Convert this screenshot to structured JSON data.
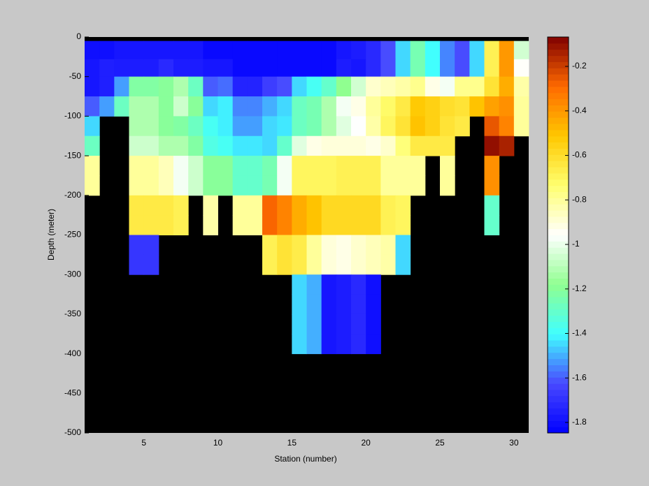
{
  "chart_data": {
    "type": "heatmap",
    "xlabel": "Station (number)",
    "ylabel": "Depth (meter)",
    "x_edges": [
      1,
      2,
      3,
      4,
      5,
      6,
      7,
      8,
      9,
      10,
      11,
      12,
      13,
      14,
      15,
      16,
      17,
      18,
      19,
      20,
      21,
      22,
      23,
      24,
      25,
      26,
      27,
      28,
      29,
      30,
      31
    ],
    "y_edges": [
      0,
      -5,
      -28,
      -50,
      -75,
      -100,
      -125,
      -150,
      -175,
      -200,
      -225,
      -250,
      -275,
      -300,
      -325,
      -350,
      -375,
      -400,
      -425,
      -450,
      -475,
      -500
    ],
    "xlim": [
      1,
      31
    ],
    "ylim": [
      -500,
      0
    ],
    "xticks": [
      5,
      10,
      15,
      20,
      25,
      30
    ],
    "yticks": [
      0,
      -50,
      -100,
      -150,
      -200,
      -250,
      -300,
      -350,
      -400,
      -450,
      -500
    ],
    "clim": [
      -1.847,
      -0.068
    ],
    "cticks": [
      -1.8,
      -1.6,
      -1.4,
      -1.2,
      -1,
      -0.8,
      -0.6,
      -0.4,
      -0.2
    ],
    "colormap": [
      "#0000ff",
      "#4848ff",
      "#40ffff",
      "#90ff90",
      "#ffffff",
      "#ffff70",
      "#ffc800",
      "#ff6a00",
      "#800000"
    ],
    "nan_color": "#000000",
    "z": [
      [
        null,
        null,
        null,
        null,
        null,
        null,
        null,
        null,
        null,
        null,
        null,
        null,
        null,
        null,
        null,
        null,
        null,
        null,
        null,
        null,
        null,
        null,
        null,
        null,
        null,
        null,
        null,
        null,
        null,
        null
      ],
      [
        -1.8,
        -1.8,
        -1.78,
        -1.78,
        -1.78,
        -1.78,
        -1.78,
        -1.78,
        -1.82,
        -1.82,
        -1.82,
        -1.82,
        -1.82,
        -1.82,
        -1.82,
        -1.82,
        -1.82,
        -1.78,
        -1.76,
        -1.72,
        -1.62,
        -1.45,
        -1.25,
        -1.4,
        -1.55,
        -1.62,
        -1.45,
        -0.68,
        -0.4,
        -1.05
      ],
      [
        -1.78,
        -1.75,
        -1.76,
        -1.76,
        -1.76,
        -1.72,
        -1.76,
        -1.76,
        -1.78,
        -1.78,
        -1.82,
        -1.82,
        -1.82,
        -1.82,
        -1.82,
        -1.82,
        -1.82,
        -1.76,
        -1.78,
        -1.72,
        -1.62,
        -1.45,
        -1.25,
        -1.4,
        -1.55,
        -1.62,
        -1.45,
        -0.68,
        -0.4,
        -0.95
      ],
      [
        -1.78,
        -1.75,
        -1.52,
        -1.22,
        -1.22,
        -1.2,
        -1.12,
        -1.28,
        -1.6,
        -1.58,
        -1.74,
        -1.74,
        -1.66,
        -1.62,
        -1.45,
        -1.38,
        -1.3,
        -1.18,
        -1.05,
        -0.88,
        -0.85,
        -0.82,
        -0.78,
        -0.92,
        -0.98,
        -0.78,
        -0.78,
        -0.62,
        -0.45,
        -0.82
      ],
      [
        -1.6,
        -1.52,
        -1.28,
        -1.12,
        -1.12,
        -1.2,
        -1.06,
        -1.2,
        -1.45,
        -1.42,
        -1.55,
        -1.55,
        -1.5,
        -1.45,
        -1.28,
        -1.25,
        -1.12,
        -0.98,
        -0.92,
        -0.8,
        -0.72,
        -0.65,
        -0.52,
        -0.55,
        -0.6,
        -0.62,
        -0.5,
        -0.42,
        -0.38,
        -0.8
      ],
      [
        -1.45,
        null,
        null,
        -1.12,
        -1.12,
        -1.2,
        -1.22,
        -1.28,
        -1.38,
        -1.42,
        -1.52,
        -1.52,
        -1.45,
        -1.43,
        -1.28,
        -1.25,
        -1.12,
        -1.02,
        -0.96,
        -0.82,
        -0.7,
        -0.62,
        -0.5,
        -0.55,
        -0.62,
        -0.65,
        null,
        -0.25,
        -0.35,
        -0.8
      ],
      [
        -1.28,
        null,
        null,
        -1.06,
        -1.06,
        -1.12,
        -1.12,
        -1.22,
        -1.35,
        -1.38,
        -1.43,
        -1.43,
        -1.45,
        -1.3,
        -1.02,
        -0.92,
        -0.9,
        -0.9,
        -0.9,
        -0.92,
        -0.88,
        -0.75,
        -0.65,
        -0.65,
        -0.65,
        null,
        null,
        -0.1,
        -0.14,
        null
      ],
      [
        -0.8,
        null,
        null,
        -0.8,
        -0.8,
        -0.85,
        -0.98,
        -1.06,
        -1.2,
        -1.2,
        -1.3,
        -1.3,
        -1.25,
        -0.98,
        -0.7,
        -0.7,
        -0.7,
        -0.68,
        -0.68,
        -0.68,
        -0.8,
        -0.8,
        -0.8,
        null,
        -0.8,
        null,
        null,
        -0.38,
        null,
        null
      ],
      [
        -0.8,
        null,
        null,
        -0.8,
        -0.8,
        -0.85,
        -0.98,
        -1.06,
        -1.2,
        -1.2,
        -1.3,
        -1.3,
        -1.25,
        -0.98,
        -0.7,
        -0.7,
        -0.7,
        -0.68,
        -0.68,
        -0.68,
        -0.8,
        -0.8,
        -0.8,
        null,
        -0.8,
        null,
        null,
        -0.38,
        null,
        null
      ],
      [
        null,
        null,
        null,
        -0.65,
        -0.65,
        -0.65,
        -0.68,
        null,
        -0.82,
        null,
        -0.8,
        -0.8,
        -0.28,
        -0.35,
        -0.45,
        -0.5,
        -0.58,
        -0.58,
        -0.58,
        -0.58,
        -0.68,
        -0.7,
        null,
        null,
        null,
        null,
        null,
        -1.3,
        null,
        null
      ],
      [
        null,
        null,
        null,
        -0.65,
        -0.65,
        -0.65,
        -0.68,
        null,
        -0.82,
        null,
        -0.8,
        -0.8,
        -0.28,
        -0.35,
        -0.45,
        -0.5,
        -0.58,
        -0.58,
        -0.58,
        -0.58,
        -0.68,
        -0.7,
        null,
        null,
        null,
        null,
        null,
        -1.3,
        null,
        null
      ],
      [
        null,
        null,
        null,
        -1.68,
        -1.68,
        null,
        null,
        null,
        null,
        null,
        null,
        null,
        -0.68,
        -0.62,
        -0.66,
        -0.8,
        -0.9,
        -0.92,
        -0.88,
        -0.85,
        -0.82,
        -1.45,
        null,
        null,
        null,
        null,
        null,
        null,
        null,
        null
      ],
      [
        null,
        null,
        null,
        -1.68,
        -1.68,
        null,
        null,
        null,
        null,
        null,
        null,
        null,
        -0.68,
        -0.62,
        -0.66,
        -0.8,
        -0.9,
        -0.92,
        -0.88,
        -0.85,
        -0.82,
        -1.45,
        null,
        null,
        null,
        null,
        null,
        null,
        null,
        null
      ],
      [
        null,
        null,
        null,
        null,
        null,
        null,
        null,
        null,
        null,
        null,
        null,
        null,
        null,
        null,
        -1.45,
        -1.5,
        -1.78,
        -1.76,
        -1.72,
        -1.8,
        null,
        null,
        null,
        null,
        null,
        null,
        null,
        null,
        null,
        null
      ],
      [
        null,
        null,
        null,
        null,
        null,
        null,
        null,
        null,
        null,
        null,
        null,
        null,
        null,
        null,
        -1.45,
        -1.5,
        -1.78,
        -1.76,
        -1.72,
        -1.8,
        null,
        null,
        null,
        null,
        null,
        null,
        null,
        null,
        null,
        null
      ],
      [
        null,
        null,
        null,
        null,
        null,
        null,
        null,
        null,
        null,
        null,
        null,
        null,
        null,
        null,
        -1.45,
        -1.5,
        -1.78,
        -1.76,
        -1.72,
        -1.8,
        null,
        null,
        null,
        null,
        null,
        null,
        null,
        null,
        null,
        null
      ],
      [
        null,
        null,
        null,
        null,
        null,
        null,
        null,
        null,
        null,
        null,
        null,
        null,
        null,
        null,
        -1.45,
        -1.5,
        -1.78,
        -1.76,
        -1.72,
        -1.8,
        null,
        null,
        null,
        null,
        null,
        null,
        null,
        null,
        null,
        null
      ],
      [
        null,
        null,
        null,
        null,
        null,
        null,
        null,
        null,
        null,
        null,
        null,
        null,
        null,
        null,
        null,
        null,
        null,
        null,
        null,
        null,
        null,
        null,
        null,
        null,
        null,
        null,
        null,
        null,
        null,
        null
      ],
      [
        null,
        null,
        null,
        null,
        null,
        null,
        null,
        null,
        null,
        null,
        null,
        null,
        null,
        null,
        null,
        null,
        null,
        null,
        null,
        null,
        null,
        null,
        null,
        null,
        null,
        null,
        null,
        null,
        null,
        null
      ],
      [
        null,
        null,
        null,
        null,
        null,
        null,
        null,
        null,
        null,
        null,
        null,
        null,
        null,
        null,
        null,
        null,
        null,
        null,
        null,
        null,
        null,
        null,
        null,
        null,
        null,
        null,
        null,
        null,
        null,
        null
      ],
      [
        null,
        null,
        null,
        null,
        null,
        null,
        null,
        null,
        null,
        null,
        null,
        null,
        null,
        null,
        null,
        null,
        null,
        null,
        null,
        null,
        null,
        null,
        null,
        null,
        null,
        null,
        null,
        null,
        null,
        null
      ]
    ]
  }
}
